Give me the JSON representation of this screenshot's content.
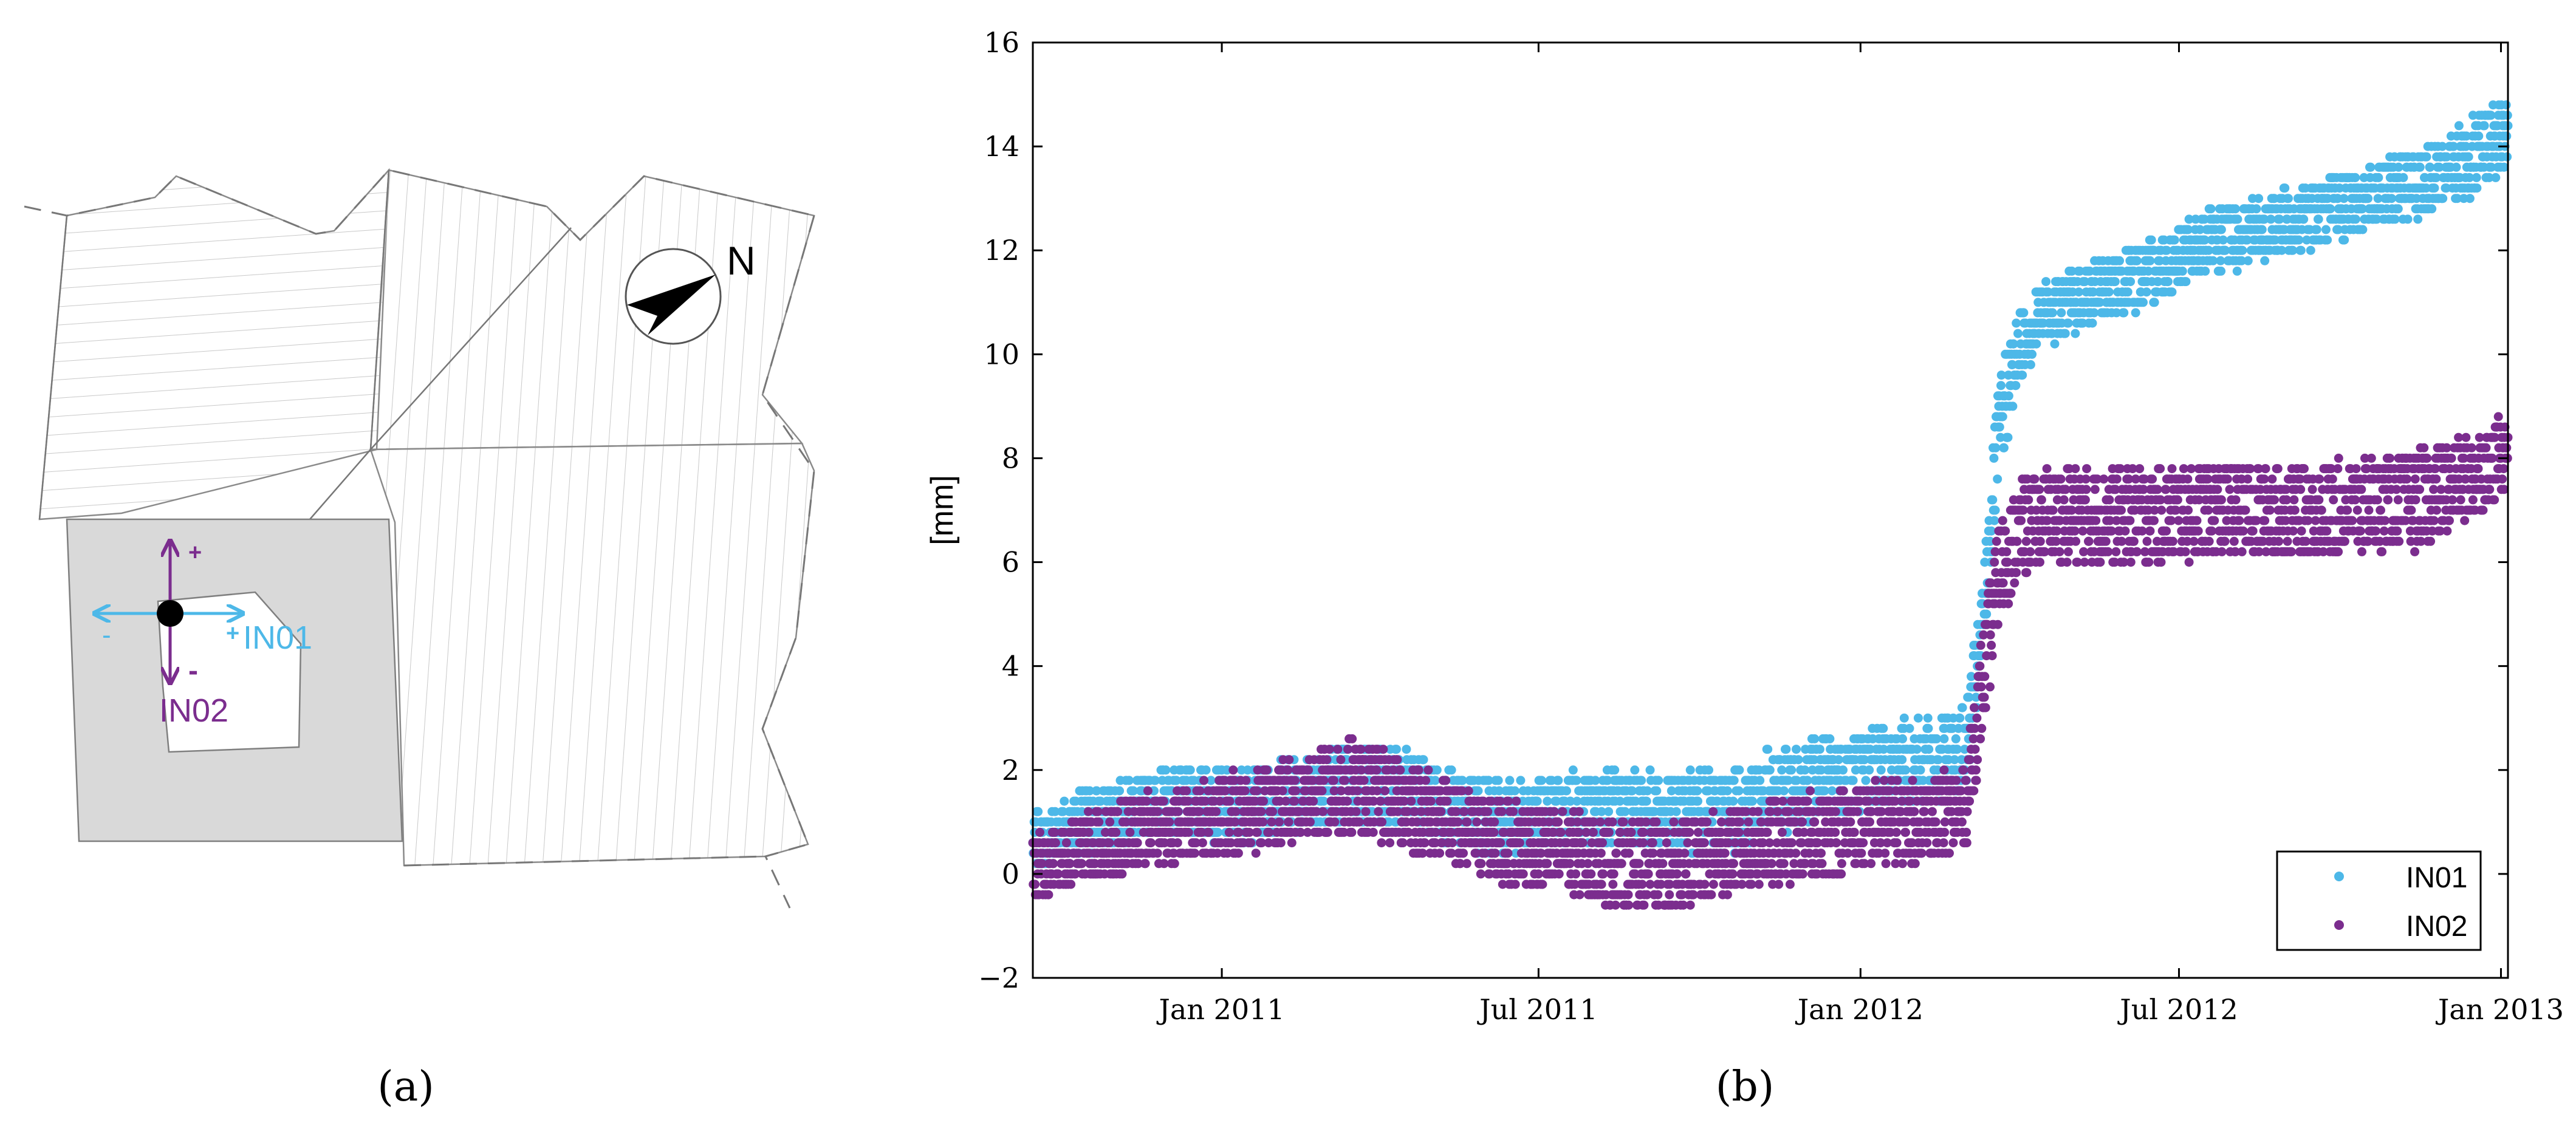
{
  "panel_a": {
    "caption": "(a)",
    "compass_label": "N",
    "sensor_1_label": "IN01",
    "sensor_2_label": "IN02",
    "plus_sign": "+",
    "minus_sign": "-",
    "colors": {
      "in01": "#4db8e8",
      "in02": "#7b2d8e",
      "shaded": "#d9d9d9",
      "outline": "#7f7f7f"
    }
  },
  "panel_b": {
    "caption": "(b)"
  },
  "chart_data": {
    "type": "scatter",
    "title": "",
    "xlabel": "",
    "ylabel": "[mm]",
    "xlim": [
      "2010-09-15",
      "2013-01-05"
    ],
    "ylim": [
      -2,
      16
    ],
    "y_ticks": [
      -2,
      0,
      2,
      4,
      6,
      8,
      10,
      12,
      14,
      16
    ],
    "y_tick_labels": [
      "−2",
      "0",
      "2",
      "4",
      "6",
      "8",
      "10",
      "12",
      "14",
      "16"
    ],
    "x_ticks": [
      "2011-01-01",
      "2011-07-01",
      "2012-01-01",
      "2012-07-01",
      "2013-01-01"
    ],
    "x_tick_labels": [
      "Jan 2011",
      "Jul 2011",
      "Jan 2012",
      "Jul 2012",
      "Jan 2013"
    ],
    "grid": false,
    "legend_position": "bottom-right",
    "series": [
      {
        "name": "IN01",
        "color": "#4db8e8",
        "x": [
          "2010-09-15",
          "2010-10-15",
          "2010-11-15",
          "2010-12-15",
          "2011-01-15",
          "2011-02-15",
          "2011-03-15",
          "2011-04-15",
          "2011-05-15",
          "2011-06-15",
          "2011-07-15",
          "2011-08-15",
          "2011-09-15",
          "2011-10-15",
          "2011-11-15",
          "2011-12-15",
          "2012-01-15",
          "2012-02-15",
          "2012-03-01",
          "2012-03-10",
          "2012-03-20",
          "2012-04-01",
          "2012-04-15",
          "2012-05-15",
          "2012-06-15",
          "2012-07-15",
          "2012-08-15",
          "2012-09-15",
          "2012-10-15",
          "2012-11-15",
          "2012-12-15",
          "2013-01-05"
        ],
        "y": [
          0.6,
          1.0,
          1.3,
          1.4,
          1.3,
          1.6,
          1.8,
          1.6,
          1.2,
          1.1,
          1.2,
          1.3,
          1.2,
          1.2,
          1.6,
          1.9,
          2.1,
          2.2,
          2.4,
          4.5,
          8.5,
          10.2,
          10.8,
          11.2,
          11.6,
          12.1,
          12.4,
          12.7,
          13.0,
          13.3,
          13.8,
          14.3
        ],
        "spread": [
          0.5,
          0.6,
          0.6,
          0.7,
          0.7,
          0.7,
          0.8,
          0.8,
          0.7,
          0.7,
          0.7,
          0.7,
          0.7,
          0.8,
          0.8,
          0.8,
          0.8,
          0.8,
          0.8,
          0.9,
          1.0,
          0.7,
          0.6,
          0.6,
          0.6,
          0.6,
          0.6,
          0.6,
          0.6,
          0.6,
          0.7,
          0.7
        ]
      },
      {
        "name": "IN02",
        "color": "#7b2d8e",
        "x": [
          "2010-09-15",
          "2010-10-15",
          "2010-11-15",
          "2010-12-15",
          "2011-01-15",
          "2011-02-15",
          "2011-03-15",
          "2011-04-15",
          "2011-05-15",
          "2011-06-15",
          "2011-07-15",
          "2011-08-15",
          "2011-09-15",
          "2011-10-15",
          "2011-11-15",
          "2011-12-15",
          "2012-01-15",
          "2012-02-15",
          "2012-03-01",
          "2012-03-10",
          "2012-03-20",
          "2012-04-01",
          "2012-04-15",
          "2012-05-15",
          "2012-06-15",
          "2012-07-15",
          "2012-08-15",
          "2012-09-15",
          "2012-10-15",
          "2012-11-15",
          "2012-12-15",
          "2013-01-05"
        ],
        "y": [
          0.1,
          0.5,
          0.8,
          1.0,
          1.2,
          1.5,
          1.7,
          1.4,
          0.9,
          0.6,
          0.4,
          0.2,
          0.1,
          0.4,
          0.6,
          0.8,
          1.0,
          1.1,
          1.3,
          3.5,
          5.8,
          6.6,
          6.9,
          6.9,
          6.9,
          7.0,
          7.0,
          7.0,
          7.1,
          7.2,
          7.6,
          8.2
        ],
        "spread": [
          0.6,
          0.6,
          0.7,
          0.7,
          0.8,
          0.8,
          0.9,
          0.9,
          0.8,
          0.8,
          0.8,
          0.8,
          0.8,
          0.8,
          0.8,
          0.8,
          0.8,
          0.8,
          0.8,
          1.0,
          1.0,
          0.9,
          0.9,
          0.9,
          0.9,
          0.9,
          0.9,
          0.9,
          0.9,
          0.9,
          0.8,
          0.7
        ]
      }
    ]
  }
}
